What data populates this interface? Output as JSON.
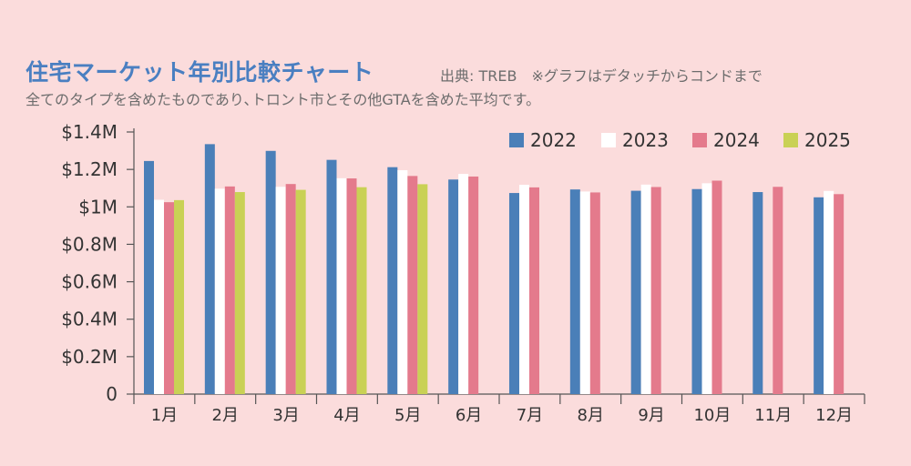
{
  "header": {
    "title": "住宅マーケット年別比較チャート",
    "source": "出典: TREB　※グラフはデタッチからコンドまで",
    "note": "全てのタイプを含めたものであり､トロント市とその他GTAを含めた平均です。"
  },
  "chart_data": {
    "type": "bar",
    "title": "住宅マーケット年別比較チャート",
    "xlabel": "",
    "ylabel": "",
    "categories": [
      "1月",
      "2月",
      "3月",
      "4月",
      "5月",
      "6月",
      "7月",
      "8月",
      "9月",
      "10月",
      "11月",
      "12月"
    ],
    "ylim": [
      0,
      1.4
    ],
    "yticks": [
      0,
      0.2,
      0.4,
      0.6,
      0.8,
      1.0,
      1.2,
      1.4
    ],
    "ytick_labels": [
      "0",
      "$0.2M",
      "$0.4M",
      "$0.6M",
      "$0.8M",
      "$1M",
      "$1.2M",
      "$1.4M"
    ],
    "grid": false,
    "legend": "top-right",
    "series": [
      {
        "name": "2022",
        "color": "#4a7fb8",
        "values": [
          1.245,
          1.335,
          1.299,
          1.251,
          1.212,
          1.146,
          1.074,
          1.093,
          1.086,
          1.095,
          1.079,
          1.051
        ]
      },
      {
        "name": "2023",
        "color": "#ffffff",
        "values": [
          1.038,
          1.097,
          1.107,
          1.153,
          1.196,
          1.176,
          1.118,
          1.082,
          1.119,
          1.126,
          null,
          1.085
        ]
      },
      {
        "name": "2024",
        "color": "#e47a8c",
        "values": [
          1.025,
          1.109,
          1.122,
          1.152,
          1.165,
          1.162,
          1.104,
          1.077,
          1.106,
          1.14,
          1.107,
          1.068
        ]
      },
      {
        "name": "2025",
        "color": "#c9d155",
        "values": [
          1.036,
          1.079,
          1.091,
          1.105,
          1.121,
          null,
          null,
          null,
          null,
          null,
          null,
          null
        ]
      }
    ]
  }
}
